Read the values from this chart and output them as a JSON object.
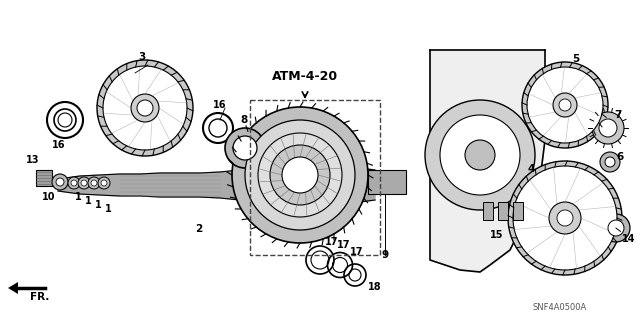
{
  "bg_color": "#ffffff",
  "title": "",
  "fig_width": 6.4,
  "fig_height": 3.2,
  "dpi": 100,
  "part_label": "ATM-4-20",
  "direction_label": "FR.",
  "catalog_number": "SNF4A0500A",
  "line_color": "#000000",
  "gear_color": "#333333",
  "shaft_color": "#222222"
}
